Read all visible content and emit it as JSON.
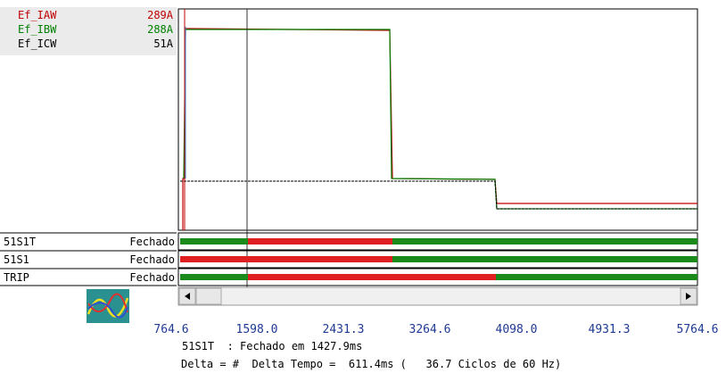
{
  "channels": [
    {
      "name": "Ef_IAW",
      "value": "289A",
      "color": "#c00000"
    },
    {
      "name": "Ef_IBW",
      "value": "288A",
      "color": "#008000"
    },
    {
      "name": "Ef_ICW",
      "value": "51A",
      "color": "#000000"
    }
  ],
  "digital": [
    {
      "name": "51S1T",
      "state": "Fechado"
    },
    {
      "name": "51S1",
      "state": "Fechado"
    },
    {
      "name": "TRIP",
      "state": "Fechado"
    }
  ],
  "time_labels": [
    "764.6",
    "1598.0",
    "2431.3",
    "3264.6",
    "4098.0",
    "4931.3",
    "5764.6"
  ],
  "status": [
    "51S1T  : Fechado em 1427.9ms",
    "Delta = #  Delta Tempo =  611.4ms (   36.7 Ciclos de 60 Hz)"
  ]
}
